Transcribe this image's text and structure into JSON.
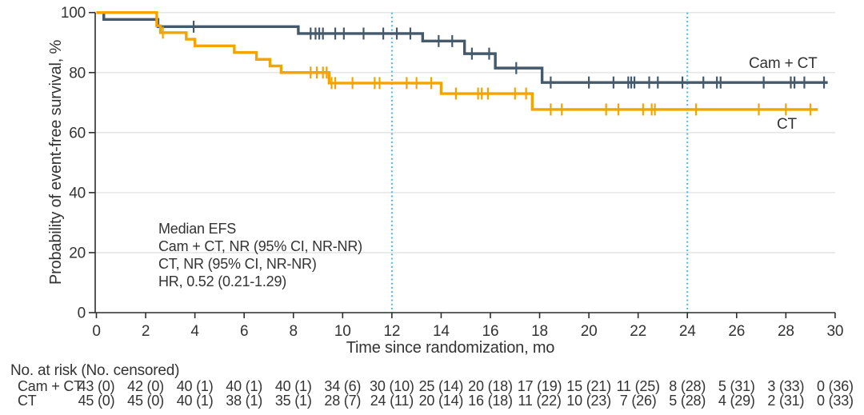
{
  "chart_data": {
    "type": "line",
    "subtype": "kaplan-meier-step",
    "title": "",
    "xlabel": "Time since randomization, mo",
    "ylabel": "Probability of event-free survival, %",
    "xlim": [
      0,
      30
    ],
    "ylim": [
      0,
      100
    ],
    "x_ticks": [
      0,
      2,
      4,
      6,
      8,
      10,
      12,
      14,
      16,
      18,
      20,
      22,
      24,
      26,
      28,
      30
    ],
    "y_ticks": [
      0,
      20,
      40,
      60,
      80,
      100
    ],
    "grid": "horizontal",
    "reference_lines_x": [
      12,
      24
    ],
    "annotation": {
      "lines": [
        "Median EFS",
        "Cam + CT, NR (95% CI, NR-NR)",
        "CT, NR (95% CI, NR-NR)",
        "HR, 0.52 (0.21-1.29)"
      ]
    },
    "series": [
      {
        "name": "Cam + CT",
        "color_key": "cam_ct",
        "steps": [
          [
            0,
            100
          ],
          [
            0.3,
            97.7
          ],
          [
            2.5,
            95.3
          ],
          [
            8.2,
            93.0
          ],
          [
            13.25,
            90.5
          ],
          [
            14.95,
            86.3
          ],
          [
            16.2,
            81.5
          ],
          [
            18.1,
            76.7
          ]
        ],
        "end": 29.7,
        "censors": [
          3.95,
          8.7,
          8.9,
          9.05,
          9.2,
          9.7,
          10.05,
          10.85,
          11.65,
          12.2,
          12.75,
          13.9,
          14.45,
          15.25,
          15.95,
          17.05,
          18.45,
          20.0,
          21.0,
          21.6,
          21.72,
          21.85,
          22.45,
          22.8,
          23.8,
          24.65,
          25.2,
          25.35,
          27.1,
          28.2,
          28.35,
          28.75,
          29.55
        ]
      },
      {
        "name": "CT",
        "color_key": "ct",
        "steps": [
          [
            0,
            100
          ],
          [
            2.45,
            95.6
          ],
          [
            2.6,
            93.3
          ],
          [
            3.65,
            91.1
          ],
          [
            4.0,
            88.9
          ],
          [
            5.6,
            86.7
          ],
          [
            6.5,
            84.4
          ],
          [
            7.05,
            82.2
          ],
          [
            7.5,
            80.0
          ],
          [
            9.45,
            76.5
          ],
          [
            14.0,
            73.0
          ],
          [
            17.7,
            67.7
          ]
        ],
        "end": 29.3,
        "censors": [
          2.7,
          8.7,
          8.95,
          9.2,
          9.35,
          9.55,
          9.7,
          10.4,
          11.3,
          11.5,
          12.6,
          13.0,
          13.6,
          14.6,
          15.5,
          15.65,
          15.9,
          17.0,
          17.45,
          18.45,
          18.9,
          20.7,
          21.2,
          22.2,
          22.55,
          22.68,
          24.35,
          26.9,
          28.0,
          29.0
        ]
      }
    ]
  },
  "colors": {
    "cam_ct": "#44596B",
    "ct": "#F4A401",
    "reference_line": "#47B7E8",
    "gridline": "#E6E6E6",
    "axis": "#2D2D2D",
    "text": "#333333"
  },
  "risk_table": {
    "title": "No. at risk (No. censored)",
    "columns": [
      0,
      2,
      4,
      6,
      8,
      10,
      12,
      14,
      16,
      18,
      20,
      22,
      24,
      26,
      28,
      30
    ],
    "rows": [
      {
        "label": "Cam + CT",
        "values": [
          "43 (0)",
          "42 (0)",
          "40 (1)",
          "40 (1)",
          "40 (1)",
          "34 (6)",
          "30 (10)",
          "25 (14)",
          "20 (18)",
          "17 (19)",
          "15 (21)",
          "11 (25)",
          "8 (28)",
          "5 (31)",
          "3 (33)",
          "0 (36)"
        ]
      },
      {
        "label": "CT",
        "values": [
          "45 (0)",
          "45 (0)",
          "40 (1)",
          "38 (1)",
          "35 (1)",
          "28 (7)",
          "24 (11)",
          "20 (14)",
          "16 (18)",
          "11 (22)",
          "10 (23)",
          "7 (26)",
          "5 (28)",
          "4 (29)",
          "2 (31)",
          "0 (33)"
        ]
      }
    ]
  }
}
